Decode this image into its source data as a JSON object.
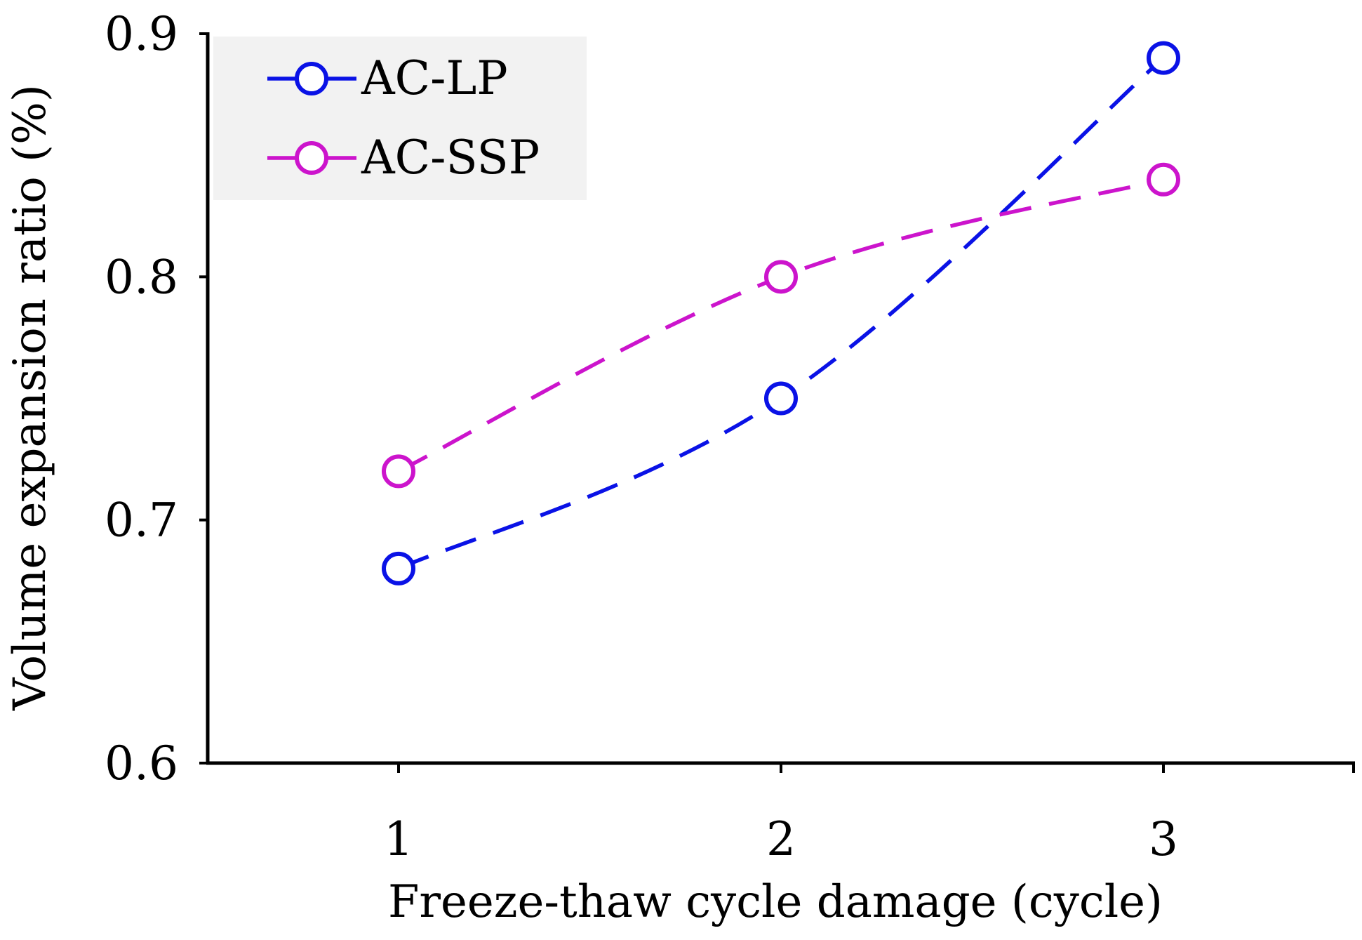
{
  "chart_data": {
    "type": "line",
    "title": "",
    "xlabel": "Freeze-thaw cycle damage (cycle)",
    "ylabel": "Volume expansion ratio (%)",
    "x": [
      1,
      2,
      3
    ],
    "x_tick_labels": [
      "1",
      "2",
      "3"
    ],
    "xlim": [
      0.5,
      3.5
    ],
    "ylim": [
      0.6,
      0.9
    ],
    "y_ticks": [
      0.6,
      0.7,
      0.8,
      0.9
    ],
    "y_tick_labels": [
      "0.6",
      "0.7",
      "0.8",
      "0.9"
    ],
    "grid": false,
    "legend_position": "top-left",
    "series": [
      {
        "name": "AC-LP",
        "values": [
          0.68,
          0.75,
          0.89
        ],
        "color": "#0a12e6",
        "line_style": "dashed",
        "marker": "open-circle"
      },
      {
        "name": "AC-SSP",
        "values": [
          0.72,
          0.8,
          0.84
        ],
        "color": "#cc14cc",
        "line_style": "dashed",
        "marker": "open-circle"
      }
    ],
    "legend_background": "#f2f2f2"
  }
}
